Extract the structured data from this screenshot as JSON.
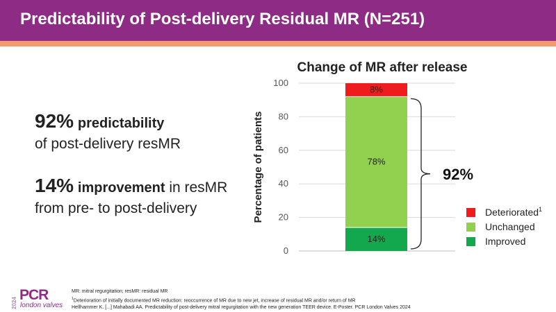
{
  "header": {
    "title": "Predictability of Post-delivery Residual MR (N=251)"
  },
  "stats": {
    "stat1": {
      "number": "92%",
      "bold_text": "predictability",
      "rest": "of post-delivery resMR"
    },
    "stat2": {
      "number": "14%",
      "bold_text": "improvement",
      "rest_line1": " in resMR",
      "rest_line2": "from pre- to post-delivery"
    }
  },
  "chart_data": {
    "type": "bar",
    "stacked": true,
    "title": "Change of MR after release",
    "xlabel": "",
    "ylabel": "Percentage of patients",
    "ylim": [
      0,
      100
    ],
    "yticks": [
      "0",
      "20",
      "40",
      "60",
      "80",
      "100"
    ],
    "grid": true,
    "series": [
      {
        "name": "Improved",
        "value": 14,
        "label": "14%",
        "color": "#13a84e"
      },
      {
        "name": "Unchanged",
        "value": 78,
        "label": "78%",
        "color": "#92d050"
      },
      {
        "name": "Deteriorated",
        "value": 8,
        "label": "8%",
        "color": "#ee1c1c"
      }
    ],
    "legend_order": [
      {
        "name": "Deteriorated",
        "superscript": "1",
        "color": "#ee1c1c"
      },
      {
        "name": "Unchanged",
        "superscript": "",
        "color": "#92d050"
      },
      {
        "name": "Improved",
        "superscript": "",
        "color": "#13a84e"
      }
    ],
    "legend_position": "bottom-right",
    "bracket": {
      "label": "92%",
      "from": 0,
      "to": 92
    }
  },
  "footer": {
    "line1": "MR: mitral regurgitation; resMR: residual MR",
    "line2_sup": "1",
    "line2": "Deterioration of initially documented MR reduction: reoccurrence of MR due to new jet, increase of residual MR and/or return of MR",
    "line3": "Hellhammer K. [...] Mahabadi AA. Predictability of post-delivery mitral regurgitation with the new generation TEER device. E-Poster. PCR London Valves 2024"
  },
  "logo": {
    "year": "2024",
    "brand": "PCR",
    "sub": "london valves"
  }
}
